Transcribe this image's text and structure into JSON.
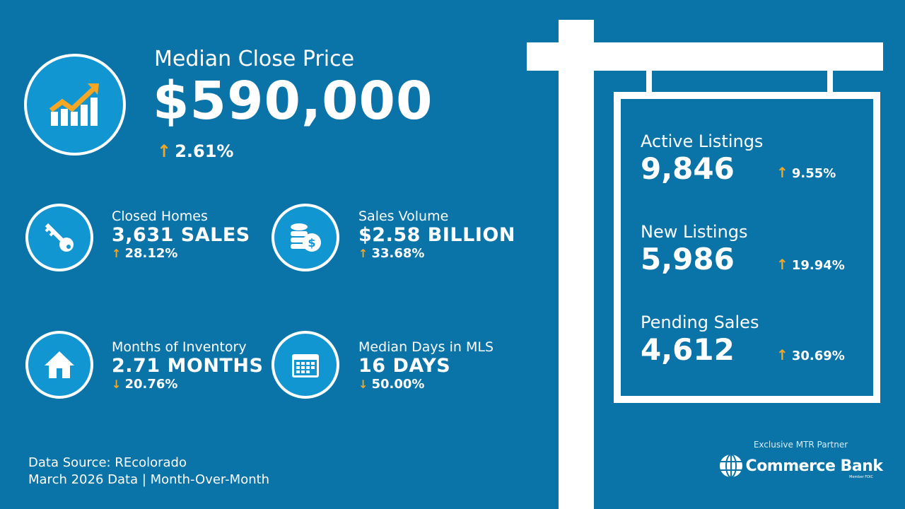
{
  "hero": {
    "label": "Median Close Price",
    "value": "$590,000",
    "change": "2.61%",
    "direction": "up",
    "icon": "trending-chart-icon"
  },
  "stats": [
    {
      "label": "Closed Homes",
      "value": "3,631 SALES",
      "change": "28.12%",
      "direction": "up",
      "icon": "key-icon"
    },
    {
      "label": "Sales Volume",
      "value": "$2.58 BILLION",
      "change": "33.68%",
      "direction": "up",
      "icon": "coins-icon"
    },
    {
      "label": "Months of Inventory",
      "value": "2.71 MONTHS",
      "change": "20.76%",
      "direction": "down",
      "icon": "house-icon"
    },
    {
      "label": "Median Days in MLS",
      "value": "16 DAYS",
      "change": "50.00%",
      "direction": "down",
      "icon": "calendar-icon"
    }
  ],
  "sign": [
    {
      "label": "Active Listings",
      "value": "9,846",
      "change": "9.55%",
      "direction": "up"
    },
    {
      "label": "New Listings",
      "value": "5,986",
      "change": "19.94%",
      "direction": "up"
    },
    {
      "label": "Pending Sales",
      "value": "4,612",
      "change": "30.69%",
      "direction": "up"
    }
  ],
  "footer": {
    "source": "Data Source: REcolorado",
    "period": "March 2026 Data | Month-Over-Month"
  },
  "partner": {
    "tagline": "Exclusive MTR Partner",
    "name": "Commerce Bank",
    "sub": "Member FDIC"
  },
  "colors": {
    "background": "#0a74a8",
    "accent": "#f5a623",
    "icon_fill": "#1296d2"
  },
  "arrows": {
    "up": "🡑",
    "down": "🡓"
  }
}
